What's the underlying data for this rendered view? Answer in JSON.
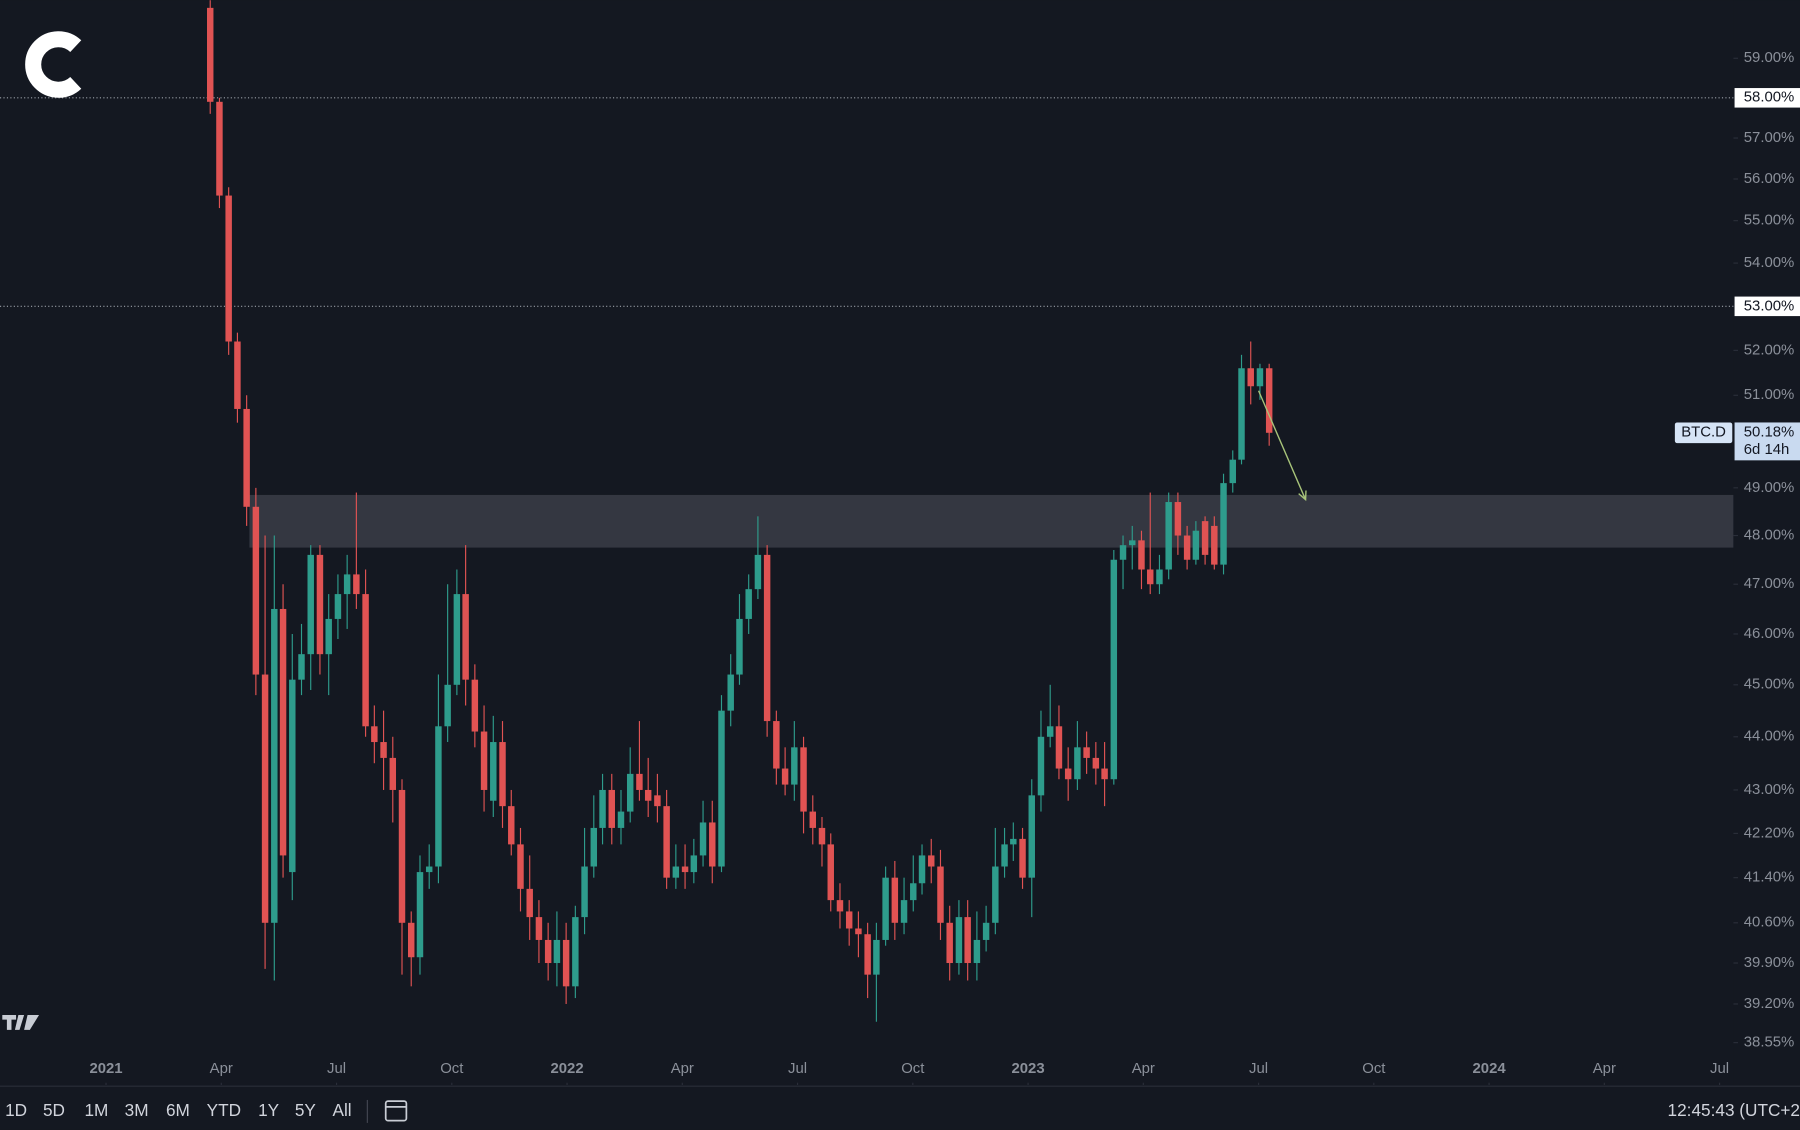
{
  "chart_data": {
    "type": "candlestick",
    "symbol": "BTC.D",
    "log_scale": true,
    "grid": false,
    "up_color": "#2e9c8c",
    "down_color": "#e05353",
    "xlim": [
      2020.77,
      2024.53
    ],
    "ylim": [
      37.85,
      60.5
    ],
    "xticks": [
      {
        "value": 2021,
        "label": "2021"
      },
      {
        "value": 2021.25,
        "label": "Apr"
      },
      {
        "value": 2021.5,
        "label": "Jul"
      },
      {
        "value": 2021.75,
        "label": "Oct"
      },
      {
        "value": 2022,
        "label": "2022"
      },
      {
        "value": 2022.25,
        "label": "Apr"
      },
      {
        "value": 2022.5,
        "label": "Jul"
      },
      {
        "value": 2022.75,
        "label": "Oct"
      },
      {
        "value": 2023,
        "label": "2023"
      },
      {
        "value": 2023.25,
        "label": "Apr"
      },
      {
        "value": 2023.5,
        "label": "Jul"
      },
      {
        "value": 2023.75,
        "label": "Oct"
      },
      {
        "value": 2024,
        "label": "2024"
      },
      {
        "value": 2024.25,
        "label": "Apr"
      },
      {
        "value": 2024.5,
        "label": "Jul"
      }
    ],
    "yticks": [
      {
        "value": 59,
        "label": "59.00%"
      },
      {
        "value": 57,
        "label": "57.00%"
      },
      {
        "value": 56,
        "label": "56.00%"
      },
      {
        "value": 55,
        "label": "55.00%"
      },
      {
        "value": 54,
        "label": "54.00%"
      },
      {
        "value": 52,
        "label": "52.00%"
      },
      {
        "value": 51,
        "label": "51.00%"
      },
      {
        "value": 49,
        "label": "49.00%"
      },
      {
        "value": 48,
        "label": "48.00%"
      },
      {
        "value": 47,
        "label": "47.00%"
      },
      {
        "value": 46,
        "label": "46.00%"
      },
      {
        "value": 45,
        "label": "45.00%"
      },
      {
        "value": 44,
        "label": "44.00%"
      },
      {
        "value": 43,
        "label": "43.00%"
      },
      {
        "value": 42.2,
        "label": "42.20%"
      },
      {
        "value": 41.4,
        "label": "41.40%"
      },
      {
        "value": 40.6,
        "label": "40.60%"
      },
      {
        "value": 39.9,
        "label": "39.90%"
      },
      {
        "value": 39.2,
        "label": "39.20%"
      },
      {
        "value": 38.55,
        "label": "38.55%"
      }
    ],
    "hlines": [
      {
        "value": 58,
        "label": "58.00%"
      },
      {
        "value": 53,
        "label": "53.00%"
      }
    ],
    "last": {
      "value": 50.18,
      "label": "50.18%"
    },
    "countdown": "6d 14h",
    "zone": {
      "xmin": 2021.311,
      "ymin": 47.75,
      "ymax": 48.85
    },
    "arrow": {
      "x": [
        2023.5,
        2023.602
      ],
      "y": [
        51.1,
        48.75
      ]
    },
    "x": [
      2021.226,
      2021.246,
      2021.266,
      2021.285,
      2021.305,
      2021.325,
      2021.345,
      2021.365,
      2021.384,
      2021.404,
      2021.424,
      2021.444,
      2021.464,
      2021.483,
      2021.503,
      2021.523,
      2021.543,
      2021.563,
      2021.582,
      2021.602,
      2021.622,
      2021.642,
      2021.662,
      2021.681,
      2021.701,
      2021.721,
      2021.741,
      2021.761,
      2021.78,
      2021.8,
      2021.82,
      2021.84,
      2021.86,
      2021.879,
      2021.899,
      2021.919,
      2021.939,
      2021.959,
      2021.978,
      2021.998,
      2022.018,
      2022.038,
      2022.058,
      2022.077,
      2022.097,
      2022.117,
      2022.137,
      2022.157,
      2022.176,
      2022.196,
      2022.216,
      2022.236,
      2022.256,
      2022.275,
      2022.295,
      2022.315,
      2022.335,
      2022.355,
      2022.374,
      2022.394,
      2022.414,
      2022.434,
      2022.454,
      2022.473,
      2022.493,
      2022.513,
      2022.533,
      2022.553,
      2022.572,
      2022.592,
      2022.612,
      2022.632,
      2022.652,
      2022.671,
      2022.691,
      2022.711,
      2022.731,
      2022.751,
      2022.77,
      2022.79,
      2022.81,
      2022.83,
      2022.85,
      2022.869,
      2022.889,
      2022.909,
      2022.929,
      2022.949,
      2022.968,
      2022.988,
      2023.008,
      2023.028,
      2023.048,
      2023.067,
      2023.087,
      2023.107,
      2023.127,
      2023.147,
      2023.166,
      2023.186,
      2023.206,
      2023.226,
      2023.246,
      2023.265,
      2023.285,
      2023.305,
      2023.325,
      2023.345,
      2023.364,
      2023.384,
      2023.404,
      2023.424,
      2023.444,
      2023.463,
      2023.483,
      2023.503,
      2023.523
    ],
    "open": [
      60.3,
      57.9,
      55.6,
      52.2,
      50.7,
      48.6,
      45.2,
      40.6,
      46.5,
      41.5,
      45.1,
      45.6,
      47.6,
      45.6,
      46.3,
      46.8,
      47.2,
      46.8,
      44.2,
      43.9,
      43.6,
      43.0,
      40.6,
      40.0,
      41.5,
      41.6,
      44.2,
      45.0,
      46.8,
      45.1,
      44.1,
      42.8,
      43.9,
      42.7,
      42.0,
      41.2,
      40.7,
      40.3,
      39.9,
      40.3,
      39.5,
      40.7,
      41.6,
      42.3,
      43.0,
      42.3,
      42.6,
      43.3,
      43.0,
      42.9,
      42.7,
      41.4,
      41.6,
      41.5,
      41.8,
      42.4,
      41.6,
      44.5,
      45.2,
      46.3,
      46.9,
      47.6,
      44.3,
      43.4,
      43.1,
      43.8,
      42.6,
      42.3,
      42.0,
      41.0,
      40.8,
      40.5,
      40.4,
      39.7,
      40.3,
      41.4,
      40.6,
      41.0,
      41.3,
      41.8,
      41.6,
      40.6,
      39.9,
      40.7,
      39.9,
      40.3,
      40.6,
      41.6,
      42.0,
      42.1,
      41.4,
      42.9,
      44.0,
      44.2,
      43.4,
      43.2,
      43.8,
      43.6,
      43.4,
      43.2,
      47.5,
      47.8,
      47.9,
      47.3,
      47.0,
      47.3,
      48.7,
      48.0,
      47.5,
      48.3,
      48.2,
      47.4,
      49.1,
      49.6,
      51.6,
      51.2,
      51.6
    ],
    "high": [
      60.5,
      58,
      55.8,
      52.4,
      51,
      49,
      48,
      48,
      47,
      46,
      46.2,
      47.8,
      47.8,
      46.8,
      47.2,
      47.6,
      48.9,
      47.3,
      44.6,
      44.5,
      44,
      43.2,
      40.8,
      41.8,
      42,
      45.2,
      47,
      47.3,
      47.8,
      45.4,
      44.6,
      44.4,
      44.3,
      43,
      42.3,
      41.8,
      41,
      40.6,
      40.8,
      40.6,
      40.9,
      42.3,
      42.9,
      43.3,
      43.3,
      43,
      43.8,
      44.3,
      43.6,
      43.3,
      43,
      42,
      42,
      42.1,
      42.8,
      42.8,
      44.8,
      45.6,
      46.8,
      47.2,
      48.4,
      47.8,
      44.5,
      43.8,
      44.3,
      44,
      42.9,
      42.5,
      42.2,
      41.3,
      41,
      40.8,
      40.6,
      40.6,
      41.6,
      41.7,
      41.4,
      41.8,
      42,
      42.1,
      41.9,
      40.9,
      41,
      41,
      40.8,
      40.9,
      42.3,
      42.3,
      42.4,
      42.3,
      43.2,
      44.5,
      45,
      44.6,
      43.8,
      44.3,
      44.1,
      43.9,
      43.9,
      47.7,
      48,
      48.2,
      48.1,
      48.9,
      47.6,
      48.9,
      48.9,
      48.2,
      48.3,
      48.4,
      48.4,
      49.3,
      49.8,
      51.9,
      52.2,
      51.7,
      51.7
    ],
    "low": [
      57.6,
      55.3,
      51.9,
      50.4,
      48.2,
      44.8,
      39.8,
      39.6,
      41.4,
      41.0,
      44.8,
      44.9,
      45.2,
      44.8,
      45.9,
      46.1,
      46.5,
      44.0,
      43.5,
      43.0,
      42.4,
      39.7,
      39.5,
      39.7,
      41.2,
      41.3,
      43.9,
      44.8,
      44.6,
      43.8,
      42.6,
      42.5,
      42.3,
      41.8,
      40.8,
      40.3,
      39.9,
      39.6,
      39.5,
      39.2,
      39.3,
      40.4,
      41.4,
      42,
      42,
      42,
      42.4,
      42.8,
      42.5,
      42.4,
      41.2,
      41.2,
      41.2,
      41.3,
      41.6,
      41.3,
      41.5,
      44.2,
      45,
      46,
      46.7,
      44,
      43.1,
      42.9,
      42.8,
      42.2,
      42,
      41.6,
      40.8,
      40.5,
      40.2,
      40,
      39.3,
      38.9,
      40.2,
      40.3,
      40.4,
      40.8,
      41.1,
      41.3,
      40.3,
      39.6,
      39.7,
      39.6,
      39.6,
      40.1,
      40.4,
      41.4,
      41.7,
      41.2,
      40.7,
      42.6,
      43.8,
      43.2,
      42.8,
      43,
      43.3,
      43.1,
      42.7,
      43.1,
      46.9,
      47.3,
      46.9,
      46.8,
      46.8,
      47.1,
      47.6,
      47.3,
      47.4,
      47.4,
      47.3,
      47.2,
      48.9,
      49.5,
      50.8,
      50.9,
      49.9
    ],
    "close": [
      57.9,
      55.6,
      52.2,
      50.7,
      48.6,
      45.2,
      40.6,
      46.5,
      41.8,
      45.1,
      45.6,
      47.6,
      45.6,
      46.3,
      46.8,
      47.2,
      46.8,
      44.2,
      43.9,
      43.6,
      43.0,
      40.6,
      40.0,
      41.5,
      41.6,
      44.2,
      45.0,
      46.8,
      45.1,
      44.1,
      43.0,
      43.9,
      42.7,
      42.0,
      41.2,
      40.7,
      40.3,
      39.9,
      40.3,
      39.5,
      40.7,
      41.6,
      42.3,
      43.0,
      42.3,
      42.6,
      43.3,
      43.0,
      42.8,
      42.7,
      41.4,
      41.6,
      41.5,
      41.8,
      42.4,
      41.6,
      44.5,
      45.2,
      46.3,
      46.9,
      47.6,
      44.3,
      43.4,
      43.1,
      43.8,
      42.6,
      42.3,
      42.0,
      41.0,
      40.8,
      40.5,
      40.4,
      39.7,
      40.3,
      41.4,
      40.6,
      41.0,
      41.3,
      41.8,
      41.6,
      40.6,
      39.9,
      40.7,
      39.9,
      40.3,
      40.6,
      41.6,
      42.0,
      42.1,
      41.4,
      42.9,
      44.0,
      44.2,
      43.4,
      43.2,
      43.8,
      43.6,
      43.4,
      43.2,
      47.5,
      47.8,
      47.9,
      47.3,
      47.0,
      47.3,
      48.7,
      48.0,
      47.5,
      48.1,
      47.6,
      47.4,
      49.1,
      49.6,
      51.6,
      51.2,
      51.6,
      50.18
    ]
  },
  "percent_button": "%",
  "toolbar": {
    "ranges": [
      "1D",
      "5D",
      "1M",
      "3M",
      "6M",
      "YTD",
      "1Y",
      "5Y",
      "All"
    ],
    "time": "12:45:43 (UTC+2"
  }
}
